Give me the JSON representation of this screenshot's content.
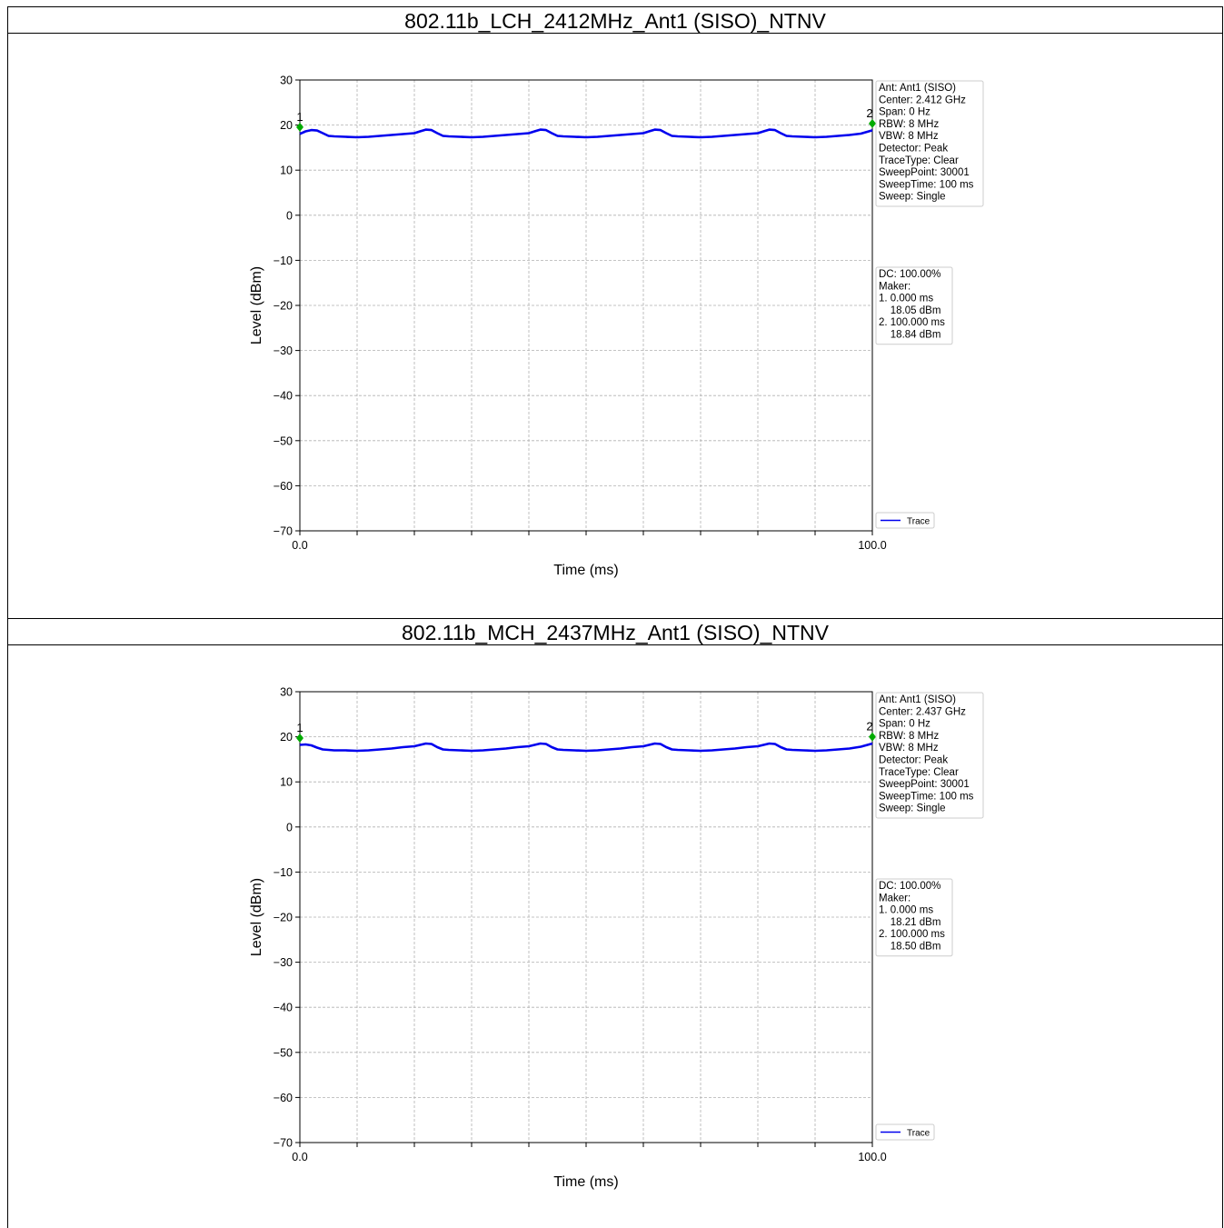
{
  "panels": [
    {
      "title": "802.11b_LCH_2412MHz_Ant1 (SISO)_NTNV",
      "info_lines": [
        "Ant: Ant1 (SISO)",
        "Center: 2.412 GHz",
        "Span: 0 Hz",
        "RBW: 8 MHz",
        "VBW: 8 MHz",
        "Detector: Peak",
        "TraceType: Clear",
        "SweepPoint: 30001",
        "SweepTime: 100 ms",
        "Sweep: Single"
      ],
      "marker_lines": [
        "DC: 100.00%",
        "Maker:",
        "1. 0.000 ms",
        "    18.05 dBm",
        "2. 100.000 ms",
        "    18.84 dBm"
      ],
      "legend": "Trace"
    },
    {
      "title": "802.11b_MCH_2437MHz_Ant1 (SISO)_NTNV",
      "info_lines": [
        "Ant: Ant1 (SISO)",
        "Center: 2.437 GHz",
        "Span: 0 Hz",
        "RBW: 8 MHz",
        "VBW: 8 MHz",
        "Detector: Peak",
        "TraceType: Clear",
        "SweepPoint: 30001",
        "SweepTime: 100 ms",
        "Sweep: Single"
      ],
      "marker_lines": [
        "DC: 100.00%",
        "Maker:",
        "1. 0.000 ms",
        "    18.21 dBm",
        "2. 100.000 ms",
        "    18.50 dBm"
      ],
      "legend": "Trace"
    }
  ],
  "chart_data": [
    {
      "type": "line",
      "xlabel": "Time (ms)",
      "ylabel": "Level (dBm)",
      "xlim": [
        0,
        100
      ],
      "ylim": [
        -70,
        30
      ],
      "x_tick_labels": [
        "0.0",
        "100.0"
      ],
      "y_ticks": [
        30,
        20,
        10,
        0,
        -10,
        -20,
        -30,
        -40,
        -50,
        -60,
        -70
      ],
      "grid": true,
      "trace_color": "#0000ee",
      "marker_color": "#00aa00",
      "series": [
        {
          "name": "Trace",
          "x": [
            0,
            1,
            2,
            3,
            4,
            5,
            6,
            8,
            10,
            12,
            14,
            16,
            18,
            20,
            21,
            22,
            23,
            24,
            25,
            26,
            28,
            30,
            32,
            34,
            36,
            38,
            40,
            41,
            42,
            43,
            44,
            45,
            46,
            48,
            50,
            52,
            54,
            56,
            58,
            60,
            61,
            62,
            63,
            64,
            65,
            66,
            68,
            70,
            72,
            74,
            76,
            78,
            80,
            81,
            82,
            83,
            84,
            85,
            86,
            88,
            90,
            92,
            94,
            96,
            98,
            100
          ],
          "y": [
            18.05,
            18.6,
            18.9,
            18.8,
            18.2,
            17.6,
            17.5,
            17.4,
            17.3,
            17.4,
            17.6,
            17.8,
            18.0,
            18.2,
            18.6,
            19.0,
            18.9,
            18.2,
            17.6,
            17.5,
            17.4,
            17.3,
            17.4,
            17.6,
            17.8,
            18.0,
            18.2,
            18.6,
            19.0,
            18.9,
            18.2,
            17.6,
            17.5,
            17.4,
            17.3,
            17.4,
            17.6,
            17.8,
            18.0,
            18.2,
            18.6,
            19.0,
            18.9,
            18.2,
            17.6,
            17.5,
            17.4,
            17.3,
            17.4,
            17.6,
            17.8,
            18.0,
            18.2,
            18.6,
            19.0,
            18.9,
            18.2,
            17.6,
            17.5,
            17.4,
            17.3,
            17.4,
            17.6,
            17.8,
            18.1,
            18.84
          ]
        }
      ],
      "markers": [
        {
          "label": "1",
          "x": 0,
          "y": 18.05
        },
        {
          "label": "2",
          "x": 100,
          "y": 18.84
        }
      ]
    },
    {
      "type": "line",
      "xlabel": "Time (ms)",
      "ylabel": "Level (dBm)",
      "xlim": [
        0,
        100
      ],
      "ylim": [
        -70,
        30
      ],
      "x_tick_labels": [
        "0.0",
        "100.0"
      ],
      "y_ticks": [
        30,
        20,
        10,
        0,
        -10,
        -20,
        -30,
        -40,
        -50,
        -60,
        -70
      ],
      "grid": true,
      "trace_color": "#0000ee",
      "marker_color": "#00aa00",
      "series": [
        {
          "name": "Trace",
          "x": [
            0,
            1,
            2,
            3,
            4,
            5,
            6,
            8,
            10,
            12,
            14,
            16,
            18,
            20,
            21,
            22,
            23,
            24,
            25,
            26,
            28,
            30,
            32,
            34,
            36,
            38,
            40,
            41,
            42,
            43,
            44,
            45,
            46,
            48,
            50,
            52,
            54,
            56,
            58,
            60,
            61,
            62,
            63,
            64,
            65,
            66,
            68,
            70,
            72,
            74,
            76,
            78,
            80,
            81,
            82,
            83,
            84,
            85,
            86,
            88,
            90,
            92,
            94,
            96,
            98,
            100
          ],
          "y": [
            18.21,
            18.3,
            18.1,
            17.6,
            17.2,
            17.1,
            17.0,
            17.0,
            16.9,
            17.0,
            17.2,
            17.4,
            17.7,
            17.9,
            18.2,
            18.5,
            18.4,
            17.7,
            17.2,
            17.1,
            17.0,
            16.9,
            17.0,
            17.2,
            17.4,
            17.7,
            17.9,
            18.2,
            18.5,
            18.4,
            17.7,
            17.2,
            17.1,
            17.0,
            16.9,
            17.0,
            17.2,
            17.4,
            17.7,
            17.9,
            18.2,
            18.5,
            18.4,
            17.7,
            17.2,
            17.1,
            17.0,
            16.9,
            17.0,
            17.2,
            17.4,
            17.7,
            17.9,
            18.2,
            18.5,
            18.4,
            17.7,
            17.2,
            17.1,
            17.0,
            16.9,
            17.0,
            17.2,
            17.4,
            17.8,
            18.5
          ]
        }
      ],
      "markers": [
        {
          "label": "1",
          "x": 0,
          "y": 18.21
        },
        {
          "label": "2",
          "x": 100,
          "y": 18.5
        }
      ]
    }
  ]
}
